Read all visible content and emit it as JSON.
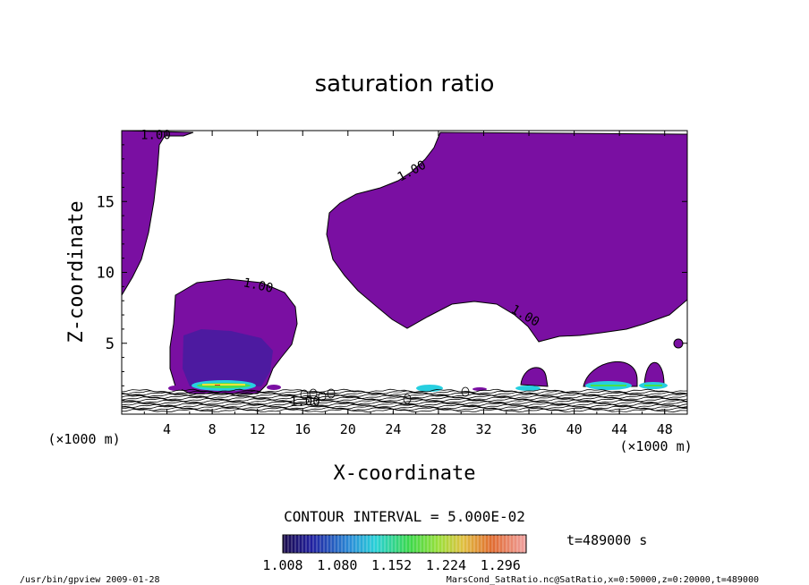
{
  "chart_data": {
    "type": "contour",
    "title": "saturation ratio",
    "xlabel": "X-coordinate",
    "ylabel": "Z-coordinate",
    "x_unit": "(×1000 m)",
    "z_unit": "(×1000 m)",
    "xlim": [
      0,
      50
    ],
    "ylim": [
      0,
      20
    ],
    "x_ticks": [
      "4",
      "8",
      "12",
      "16",
      "20",
      "24",
      "28",
      "32",
      "36",
      "40",
      "44",
      "48"
    ],
    "y_ticks": [
      "5",
      "10",
      "15"
    ],
    "contour_label_value": "1.00",
    "contour_labels": [
      {
        "text": "1.00",
        "x": 3.0,
        "z": 19.4
      },
      {
        "text": "1.00",
        "x": 25.8,
        "z": 16.9
      },
      {
        "text": "1.00",
        "x": 12.0,
        "z": 8.8
      },
      {
        "text": "1.00",
        "x": 35.5,
        "z": 6.7
      },
      {
        "text": "1.00",
        "x": 16.2,
        "z": 0.6
      }
    ],
    "contour_interval": "CONTOUR INTERVAL = 5.000E-02",
    "colorbar_ticks": [
      "1.008",
      "1.080",
      "1.152",
      "1.224",
      "1.296"
    ],
    "colorbar_range": [
      1.008,
      1.33
    ],
    "time_label": "t=489000 s",
    "supersaturated_regions": [
      {
        "name": "left upper column",
        "value": 1.0
      },
      {
        "name": "upper right plume",
        "value": 1.0
      },
      {
        "name": "left cloud",
        "value": 1.02
      },
      {
        "name": "surface cells",
        "value": 1.25
      }
    ],
    "grid": false
  },
  "footer": {
    "left": "/usr/bin/gpview  2009-01-28",
    "right": "MarsCond_SatRatio.nc@SatRatio,x=0:50000,z=0:20000,t=489000"
  },
  "colors": {
    "purple": "#7a0fa2",
    "deep_blue": "#1a1f9c",
    "cyan": "#27cfe0",
    "green": "#4adf4a",
    "yellow": "#ffe23a",
    "red": "#e02a10"
  }
}
